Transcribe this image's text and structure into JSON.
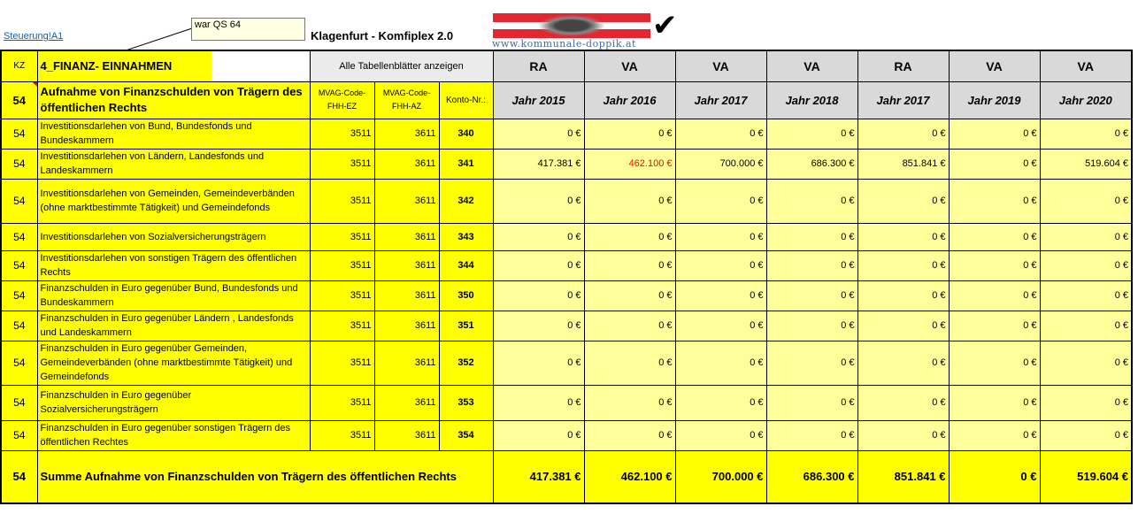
{
  "top": {
    "link": "Steuerung!A1",
    "comment": "war QS 64",
    "app_title": "Klagenfurt - Komfiplex 2.0",
    "website": "www.kommunale-doppik.at",
    "checkmark": "✔"
  },
  "header": {
    "kz": "KZ",
    "section": "4_FINANZ- EINNAHMEN",
    "show_all": "Alle Tabellenblätter anzeigen",
    "types": [
      "RA",
      "VA",
      "VA",
      "VA",
      "RA",
      "VA",
      "VA"
    ]
  },
  "subheader": {
    "kz": "54",
    "title": "Aufnahme von Finanzschulden von Trägern des öffentlichen Rechts",
    "mvag_ez": "MVAG-Code-FHH-EZ",
    "mvag_az": "MVAG-Code-FHH-AZ",
    "konto": "Konto-Nr.:",
    "years": [
      "Jahr 2015",
      "Jahr 2016",
      "Jahr 2017",
      "Jahr 2018",
      "Jahr 2017",
      "Jahr 2019",
      "Jahr 2020"
    ]
  },
  "rows": [
    {
      "kz": "54",
      "desc": " Investitionsdarlehen von Bund, Bundesfonds und Bundeskammern",
      "ez": "3511",
      "az": "3611",
      "konto": "340",
      "values": [
        "0 €",
        "0 €",
        "0 €",
        "0 €",
        "0 €",
        "0 €",
        "0 €"
      ]
    },
    {
      "kz": "54",
      "desc": " Investitionsdarlehen von Ländern, Landesfonds und Landeskammern",
      "ez": "3511",
      "az": "3611",
      "konto": "341",
      "values": [
        "417.381 €",
        "462.100 €",
        "700.000 €",
        "686.300 €",
        "851.841 €",
        "0 €",
        "519.604 €"
      ]
    },
    {
      "kz": "54",
      "desc": " Investitionsdarlehen von Gemeinden, Gemeindeverbänden (ohne marktbestimmte Tätigkeit) und Gemeindefonds",
      "ez": "3511",
      "az": "3611",
      "konto": "342",
      "values": [
        "0 €",
        "0 €",
        "0 €",
        "0 €",
        "0 €",
        "0 €",
        "0 €"
      ]
    },
    {
      "kz": "54",
      "desc": " Investitionsdarlehen von Sozialversicherungsträgern",
      "ez": "3511",
      "az": "3611",
      "konto": "343",
      "values": [
        "0 €",
        "0 €",
        "0 €",
        "0 €",
        "0 €",
        "0 €",
        "0 €"
      ]
    },
    {
      "kz": "54",
      "desc": " Investitionsdarlehen von sonstigen Trägern des öffentlichen Rechts",
      "ez": "3511",
      "az": "3611",
      "konto": "344",
      "values": [
        "0 €",
        "0 €",
        "0 €",
        "0 €",
        "0 €",
        "0 €",
        "0 €"
      ]
    },
    {
      "kz": "54",
      "desc": " Finanzschulden in Euro gegenüber Bund, Bundesfonds und Bundeskammern",
      "ez": "3511",
      "az": "3611",
      "konto": "350",
      "values": [
        "0 €",
        "0 €",
        "0 €",
        "0 €",
        "0 €",
        "0 €",
        "0 €"
      ]
    },
    {
      "kz": "54",
      "desc": " Finanzschulden in Euro gegenüber Ländern , Landesfonds und Landeskammern",
      "ez": "3511",
      "az": "3611",
      "konto": "351",
      "values": [
        "0 €",
        "0 €",
        "0 €",
        "0 €",
        "0 €",
        "0 €",
        "0 €"
      ]
    },
    {
      "kz": "54",
      "desc": " Finanzschulden in Euro gegenüber Gemeinden, Gemeindeverbänden (ohne marktbestimmte Tätigkeit) und Gemeindefonds",
      "ez": "3511",
      "az": "3611",
      "konto": "352",
      "values": [
        "0 €",
        "0 €",
        "0 €",
        "0 €",
        "0 €",
        "0 €",
        "0 €"
      ]
    },
    {
      "kz": "54",
      "desc": " Finanzschulden in Euro gegenüber Sozialversicherungsträgern",
      "ez": "3511",
      "az": "3611",
      "konto": "353",
      "values": [
        "0 €",
        "0 €",
        "0 €",
        "0 €",
        "0 €",
        "0 €",
        "0 €"
      ]
    },
    {
      "kz": "54",
      "desc": " Finanzschulden in Euro gegenüber sonstigen Trägern des öffentlichen Rechtes",
      "ez": "3511",
      "az": "3611",
      "konto": "354",
      "values": [
        "0 €",
        "0 €",
        "0 €",
        "0 €",
        "0 €",
        "0 €",
        "0 €"
      ]
    }
  ],
  "sum": {
    "kz": "54",
    "label": "Summe Aufnahme von Finanzschulden von Trägern des öffentlichen Rechts",
    "values": [
      "417.381 €",
      "462.100 €",
      "700.000 €",
      "686.300 €",
      "851.841 €",
      "0 €",
      "519.604 €"
    ]
  },
  "colors": {
    "yellow": "#ffff00",
    "light_yellow": "#ffff99",
    "header_gray": "#d9d9d9",
    "highlight_red": "#ff0000",
    "link_blue": "#0563c1"
  }
}
